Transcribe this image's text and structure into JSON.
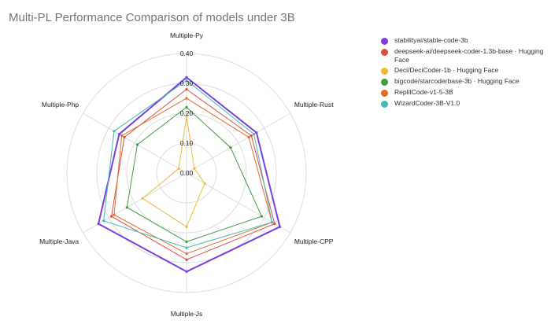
{
  "title": "Multi-PL Performance Comparison of models under 3B",
  "chart_data": {
    "type": "radar",
    "title": "Multi-PL Performance Comparison of models under 3B",
    "axes": [
      "Multiple-Py",
      "Multiple-Rust",
      "Multiple-CPP",
      "Multiple-Js",
      "Multiple-Java",
      "Multiple-Php"
    ],
    "rlim": [
      0,
      0.4
    ],
    "ticks": [
      "0.00",
      "0.10",
      "0.20",
      "0.30",
      "0.40"
    ],
    "grid": true,
    "legend_position": "right",
    "series": [
      {
        "name": "stabilityai/stable-code-3b",
        "color": "#7b3fe0",
        "values": [
          0.32,
          0.27,
          0.36,
          0.33,
          0.34,
          0.26
        ]
      },
      {
        "name": "deepseek-ai/deepseek-coder-1.3b-base · Hugging Face",
        "color": "#d64f3f",
        "values": [
          0.28,
          0.25,
          0.34,
          0.29,
          0.29,
          0.24
        ]
      },
      {
        "name": "Deci/DeciCoder-1b · Hugging Face",
        "color": "#efb83a",
        "values": [
          0.19,
          0.03,
          0.07,
          0.18,
          0.17,
          0.03
        ]
      },
      {
        "name": "bigcode/starcoderbase-3b · Hugging Face",
        "color": "#3e9a45",
        "values": [
          0.22,
          0.17,
          0.29,
          0.23,
          0.23,
          0.19
        ]
      },
      {
        "name": "ReplitCode-v1-5-3B",
        "color": "#e56a28",
        "values": [
          0.25,
          0.24,
          0.33,
          0.27,
          0.28,
          0.25
        ]
      },
      {
        "name": "WizardCoder-3B-V1.0",
        "color": "#46b6b8",
        "values": [
          0.31,
          0.26,
          0.33,
          0.25,
          0.32,
          0.28
        ]
      }
    ]
  }
}
